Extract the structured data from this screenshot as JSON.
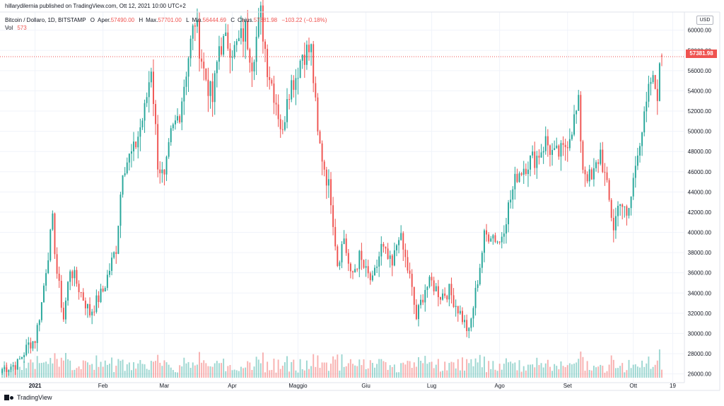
{
  "header": {
    "published_line": "hillarydilernia published on TradingView.com, Ott 12, 2021 10:00 UTC+2",
    "symbol": "Bitcoin / Dollaro, 1D, BITSTAMP",
    "o_label": "O",
    "open_label": "Aper.",
    "open_value": "57490.00",
    "high_label": "H",
    "high_prefix": "Max.",
    "high_value": "57701.00",
    "low_label": "L",
    "low_prefix": "Min.",
    "low_value": "56444.69",
    "c_label": "C",
    "close_prefix": "Chius.",
    "close_value": "57381.98",
    "change": "−103.22 (−0.18%)",
    "vol_label": "Vol",
    "vol_value": "573"
  },
  "currency": "USD",
  "last_price_label": "57381.98",
  "footer": {
    "brand": "TradingView"
  },
  "colors": {
    "up": "#26a69a",
    "down": "#ef5350",
    "grid": "#f0f3fa",
    "axis": "#b2b5be"
  },
  "chart_data": {
    "type": "candlestick",
    "symbol": "BTCUSD",
    "interval": "1D",
    "exchange": "BITSTAMP",
    "ylim": [
      25200,
      61800
    ],
    "yticks": [
      26000,
      28000,
      30000,
      32000,
      34000,
      36000,
      38000,
      40000,
      42000,
      44000,
      46000,
      48000,
      50000,
      52000,
      54000,
      56000,
      58000,
      60000
    ],
    "ytick_labels": [
      "26000.00",
      "28000.00",
      "30000.00",
      "32000.00",
      "34000.00",
      "36000.00",
      "38000.00",
      "40000.00",
      "42000.00",
      "44000.00",
      "46000.00",
      "48000.00",
      "50000.00",
      "52000.00",
      "54000.00",
      "56000.00",
      "58000.00",
      "60000.00"
    ],
    "xticks": [
      {
        "label": "2021",
        "day": 0,
        "bold": true
      },
      {
        "label": "Feb",
        "day": 31
      },
      {
        "label": "Mar",
        "day": 59
      },
      {
        "label": "Apr",
        "day": 90
      },
      {
        "label": "Maggio",
        "day": 120
      },
      {
        "label": "Giu",
        "day": 151
      },
      {
        "label": "Lug",
        "day": 181
      },
      {
        "label": "Ago",
        "day": 212
      },
      {
        "label": "Set",
        "day": 243
      },
      {
        "label": "Ott",
        "day": 273
      },
      {
        "label": "19",
        "day": 291
      }
    ],
    "x_day_range": [
      -16,
      296
    ],
    "keypoints": [
      {
        "day": -15,
        "price": 26500
      },
      {
        "day": -8,
        "price": 27000
      },
      {
        "day": -3,
        "price": 28900
      },
      {
        "day": 0,
        "price": 29400
      },
      {
        "day": 3,
        "price": 33000
      },
      {
        "day": 5,
        "price": 36500
      },
      {
        "day": 8,
        "price": 41000
      },
      {
        "day": 10,
        "price": 36000
      },
      {
        "day": 13,
        "price": 31500
      },
      {
        "day": 16,
        "price": 36500
      },
      {
        "day": 20,
        "price": 34500
      },
      {
        "day": 25,
        "price": 32000
      },
      {
        "day": 29,
        "price": 33500
      },
      {
        "day": 31,
        "price": 34200
      },
      {
        "day": 37,
        "price": 38500
      },
      {
        "day": 40,
        "price": 46500
      },
      {
        "day": 45,
        "price": 48000
      },
      {
        "day": 50,
        "price": 52000
      },
      {
        "day": 53,
        "price": 56500
      },
      {
        "day": 56,
        "price": 47000
      },
      {
        "day": 59,
        "price": 45000
      },
      {
        "day": 62,
        "price": 49500
      },
      {
        "day": 66,
        "price": 52000
      },
      {
        "day": 70,
        "price": 57500
      },
      {
        "day": 73,
        "price": 61000
      },
      {
        "day": 77,
        "price": 56000
      },
      {
        "day": 81,
        "price": 53000
      },
      {
        "day": 84,
        "price": 58500
      },
      {
        "day": 88,
        "price": 58800
      },
      {
        "day": 91,
        "price": 58000
      },
      {
        "day": 96,
        "price": 60000
      },
      {
        "day": 99,
        "price": 57000
      },
      {
        "day": 103,
        "price": 61500
      },
      {
        "day": 106,
        "price": 56500
      },
      {
        "day": 110,
        "price": 53000
      },
      {
        "day": 113,
        "price": 49500
      },
      {
        "day": 115,
        "price": 54000
      },
      {
        "day": 119,
        "price": 55500
      },
      {
        "day": 122,
        "price": 57800
      },
      {
        "day": 126,
        "price": 58000
      },
      {
        "day": 129,
        "price": 49500
      },
      {
        "day": 132,
        "price": 46500
      },
      {
        "day": 135,
        "price": 43500
      },
      {
        "day": 138,
        "price": 37000
      },
      {
        "day": 141,
        "price": 39500
      },
      {
        "day": 144,
        "price": 35500
      },
      {
        "day": 148,
        "price": 37500
      },
      {
        "day": 151,
        "price": 36000
      },
      {
        "day": 154,
        "price": 35000
      },
      {
        "day": 158,
        "price": 38500
      },
      {
        "day": 163,
        "price": 36500
      },
      {
        "day": 166,
        "price": 40000
      },
      {
        "day": 171,
        "price": 35500
      },
      {
        "day": 174,
        "price": 31500
      },
      {
        "day": 178,
        "price": 34500
      },
      {
        "day": 181,
        "price": 35000
      },
      {
        "day": 185,
        "price": 33800
      },
      {
        "day": 189,
        "price": 34200
      },
      {
        "day": 194,
        "price": 32000
      },
      {
        "day": 198,
        "price": 30000
      },
      {
        "day": 201,
        "price": 34000
      },
      {
        "day": 205,
        "price": 39500
      },
      {
        "day": 208,
        "price": 40000
      },
      {
        "day": 212,
        "price": 39000
      },
      {
        "day": 216,
        "price": 42500
      },
      {
        "day": 220,
        "price": 45800
      },
      {
        "day": 225,
        "price": 47000
      },
      {
        "day": 229,
        "price": 47500
      },
      {
        "day": 233,
        "price": 49000
      },
      {
        "day": 237,
        "price": 47500
      },
      {
        "day": 241,
        "price": 48000
      },
      {
        "day": 245,
        "price": 50500
      },
      {
        "day": 248,
        "price": 52500
      },
      {
        "day": 250,
        "price": 46500
      },
      {
        "day": 254,
        "price": 45000
      },
      {
        "day": 258,
        "price": 48000
      },
      {
        "day": 262,
        "price": 43000
      },
      {
        "day": 264,
        "price": 40500
      },
      {
        "day": 267,
        "price": 43500
      },
      {
        "day": 270,
        "price": 41200
      },
      {
        "day": 272,
        "price": 43500
      },
      {
        "day": 275,
        "price": 48500
      },
      {
        "day": 278,
        "price": 51000
      },
      {
        "day": 281,
        "price": 55000
      },
      {
        "day": 284,
        "price": 54000
      },
      {
        "day": 286,
        "price": 57500
      }
    ],
    "last": {
      "open": 57490.0,
      "high": 57701.0,
      "low": 56444.69,
      "close": 57381.98,
      "volume": 573
    }
  }
}
